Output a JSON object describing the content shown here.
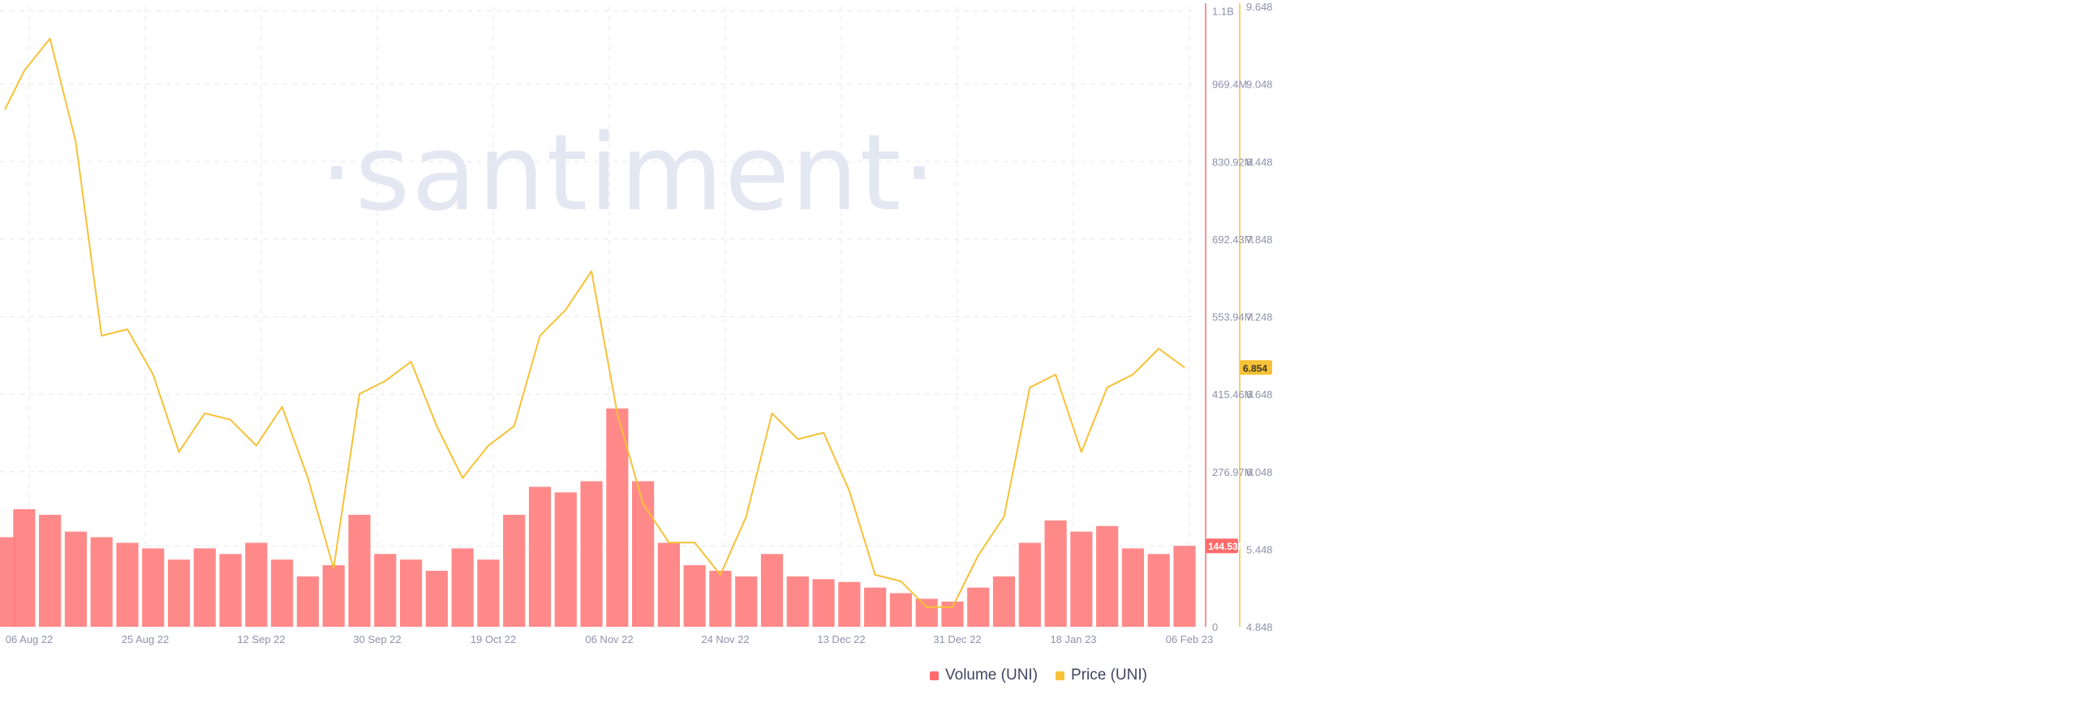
{
  "chart_data": {
    "type": "bar+line",
    "watermark": "·santiment·",
    "x_ticks": [
      "06 Aug 22",
      "25 Aug 22",
      "12 Sep 22",
      "30 Sep 22",
      "19 Oct 22",
      "06 Nov 22",
      "24 Nov 22",
      "13 Dec 22",
      "31 Dec 22",
      "18 Jan 23",
      "06 Feb 23"
    ],
    "volume_axis": {
      "ticks": [
        "0",
        "144.53M",
        "276.97M",
        "415.46M",
        "553.94M",
        "692.43M",
        "830.92M",
        "969.4M",
        "1.1B"
      ],
      "tick_values": [
        0,
        144530000,
        276970000,
        415460000,
        553940000,
        692430000,
        830920000,
        969400000,
        1100000000
      ],
      "range": [
        0,
        1108000000
      ],
      "current_value": 144530000,
      "current_label": "144.53M",
      "color": "#ff6b6b"
    },
    "price_axis": {
      "ticks": [
        "4.848",
        "5.448",
        "6.048",
        "6.648",
        "7.248",
        "7.848",
        "8.448",
        "9.048",
        "9.648"
      ],
      "tick_values": [
        4.848,
        5.448,
        6.048,
        6.648,
        7.248,
        7.848,
        8.448,
        9.048,
        9.648
      ],
      "range": [
        4.848,
        9.648
      ],
      "current_value": 6.854,
      "current_label": "6.854",
      "color": "#f7c137"
    },
    "series": [
      {
        "name": "Volume (UNI)",
        "type": "bar",
        "color": "#ff7f7f",
        "x": [
          "2022-08-06",
          "2022-08-09",
          "2022-08-13",
          "2022-08-17",
          "2022-08-21",
          "2022-08-25",
          "2022-08-29",
          "2022-09-02",
          "2022-09-06",
          "2022-09-10",
          "2022-09-14",
          "2022-09-18",
          "2022-09-22",
          "2022-09-26",
          "2022-09-30",
          "2022-10-04",
          "2022-10-08",
          "2022-10-12",
          "2022-10-16",
          "2022-10-20",
          "2022-10-24",
          "2022-10-28",
          "2022-11-01",
          "2022-11-05",
          "2022-11-09",
          "2022-11-13",
          "2022-11-17",
          "2022-11-21",
          "2022-11-25",
          "2022-11-29",
          "2022-12-03",
          "2022-12-07",
          "2022-12-11",
          "2022-12-15",
          "2022-12-19",
          "2022-12-23",
          "2022-12-27",
          "2022-12-31",
          "2023-01-04",
          "2023-01-08",
          "2023-01-12",
          "2023-01-16",
          "2023-01-20",
          "2023-01-24",
          "2023-01-28",
          "2023-02-01",
          "2023-02-05"
        ],
        "values": [
          160000000,
          210000000,
          200000000,
          170000000,
          160000000,
          150000000,
          140000000,
          120000000,
          140000000,
          130000000,
          150000000,
          120000000,
          90000000,
          110000000,
          200000000,
          130000000,
          120000000,
          100000000,
          140000000,
          120000000,
          200000000,
          250000000,
          240000000,
          260000000,
          390000000,
          260000000,
          150000000,
          110000000,
          100000000,
          90000000,
          130000000,
          90000000,
          85000000,
          80000000,
          70000000,
          60000000,
          50000000,
          45000000,
          70000000,
          90000000,
          150000000,
          190000000,
          170000000,
          180000000,
          140000000,
          130000000,
          144530000
        ]
      },
      {
        "name": "Price (UNI)",
        "type": "line",
        "color": "#f7c137",
        "x": [
          "2022-08-06",
          "2022-08-09",
          "2022-08-13",
          "2022-08-17",
          "2022-08-21",
          "2022-08-25",
          "2022-08-29",
          "2022-09-02",
          "2022-09-06",
          "2022-09-10",
          "2022-09-14",
          "2022-09-18",
          "2022-09-22",
          "2022-09-26",
          "2022-09-30",
          "2022-10-04",
          "2022-10-08",
          "2022-10-12",
          "2022-10-16",
          "2022-10-20",
          "2022-10-24",
          "2022-10-28",
          "2022-11-01",
          "2022-11-05",
          "2022-11-09",
          "2022-11-13",
          "2022-11-17",
          "2022-11-21",
          "2022-11-25",
          "2022-11-29",
          "2022-12-03",
          "2022-12-07",
          "2022-12-11",
          "2022-12-15",
          "2022-12-19",
          "2022-12-23",
          "2022-12-27",
          "2022-12-31",
          "2023-01-04",
          "2023-01-08",
          "2023-01-12",
          "2023-01-16",
          "2023-01-20",
          "2023-01-24",
          "2023-01-28",
          "2023-02-01",
          "2023-02-05"
        ],
        "values": [
          8.85,
          9.15,
          9.4,
          8.6,
          7.1,
          7.15,
          6.8,
          6.2,
          6.5,
          6.45,
          6.25,
          6.55,
          6.0,
          5.3,
          6.65,
          6.75,
          6.9,
          6.4,
          6.0,
          6.25,
          6.4,
          7.1,
          7.3,
          7.6,
          6.5,
          5.8,
          5.5,
          5.5,
          5.25,
          5.7,
          6.5,
          6.3,
          6.35,
          5.9,
          5.25,
          5.2,
          5.0,
          5.0,
          5.4,
          5.7,
          6.7,
          6.8,
          6.2,
          6.7,
          6.8,
          7.0,
          6.854
        ]
      }
    ],
    "legend": [
      {
        "label": "Volume (UNI)",
        "color": "#ff6b6b"
      },
      {
        "label": "Price (UNI)",
        "color": "#f7c137"
      }
    ]
  }
}
